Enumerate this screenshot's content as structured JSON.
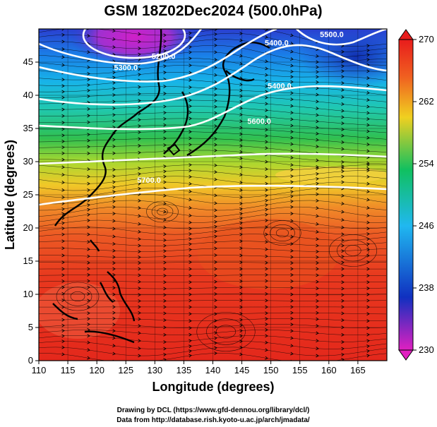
{
  "title": "GSM 18Z02Dec2024 (500.0hPa)",
  "x_axis": {
    "label": "Longitude (degrees)",
    "range": [
      110,
      170
    ],
    "ticks": [
      "110",
      "115",
      "120",
      "125",
      "130",
      "135",
      "140",
      "145",
      "150",
      "155",
      "160",
      "165"
    ]
  },
  "y_axis": {
    "label": "Latitude  (degrees)",
    "range": [
      0,
      50
    ],
    "ticks": [
      "0",
      "5",
      "10",
      "15",
      "20",
      "25",
      "30",
      "35",
      "40",
      "45"
    ]
  },
  "colorbar": {
    "range": [
      230,
      270
    ],
    "ticks": [
      "230",
      "238",
      "246",
      "254",
      "262",
      "270"
    ],
    "stops": [
      "#e020c0",
      "#1030c0",
      "#20b8f0",
      "#10c060",
      "#f0d020",
      "#f06020",
      "#e81c1c"
    ]
  },
  "contours": [
    {
      "label": "5200.0",
      "lon": 131.5,
      "lat": 45.5
    },
    {
      "label": "5300.0",
      "lon": 125.0,
      "lat": 43.8
    },
    {
      "label": "5400.0",
      "lon": 151.0,
      "lat": 47.5
    },
    {
      "label": "5400.0",
      "lon": 151.5,
      "lat": 41.0
    },
    {
      "label": "5500.0",
      "lon": 160.5,
      "lat": 48.8
    },
    {
      "label": "5600.0",
      "lon": 148.0,
      "lat": 35.7
    },
    {
      "label": "5700.0",
      "lon": 129.0,
      "lat": 26.8
    }
  ],
  "credits": [
    "Drawing by DCL (https://www.gfd-dennou.org/library/dcl/)",
    "Data from http://database.rish.kyoto-u.ac.jp/arch/jmadata/"
  ]
}
